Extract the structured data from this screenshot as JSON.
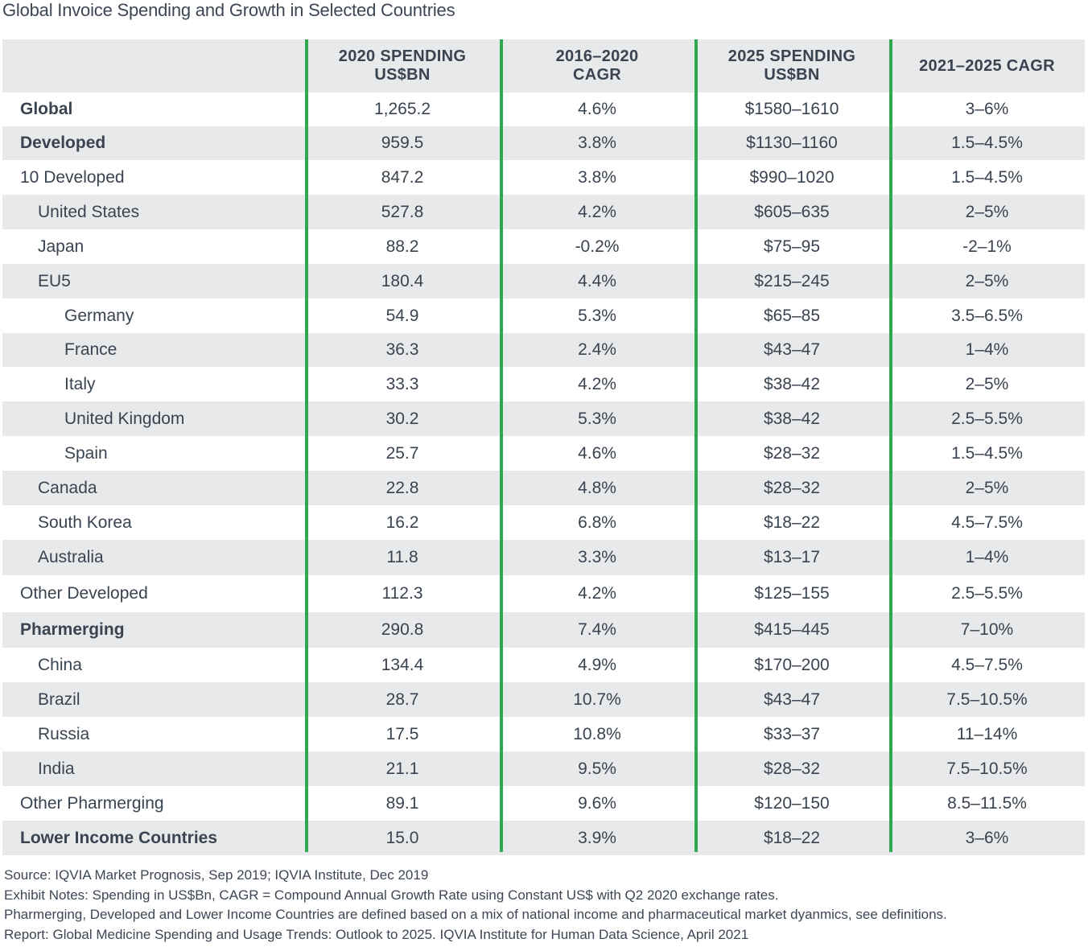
{
  "title": "Global Invoice Spending and Growth in Selected Countries",
  "colors": {
    "accent": "#2fa84f",
    "shade": "#e8e9eb",
    "text": "#3a4350"
  },
  "table": {
    "headers": [
      {
        "line1": "",
        "line2": ""
      },
      {
        "line1": "2020 SPENDING",
        "line2": "US$BN"
      },
      {
        "line1": "2016–2020",
        "line2": "CAGR"
      },
      {
        "line1": "2025 SPENDING",
        "line2": "US$BN"
      },
      {
        "line1": "2021–2025 CAGR",
        "line2": ""
      }
    ],
    "rows": [
      {
        "cells": [
          "Global",
          "1,265.2",
          "4.6%",
          "$1580–1610",
          "3–6%"
        ],
        "level": 0,
        "bold": true
      },
      {
        "cells": [
          "Developed",
          "959.5",
          "3.8%",
          "$1130–1160",
          "1.5–4.5%"
        ],
        "level": 0,
        "bold": true
      },
      {
        "cells": [
          "10 Developed",
          "847.2",
          "3.8%",
          "$990–1020",
          "1.5–4.5%"
        ],
        "level": 0,
        "bold": false
      },
      {
        "cells": [
          "United States",
          "527.8",
          "4.2%",
          "$605–635",
          "2–5%"
        ],
        "level": 1,
        "bold": false
      },
      {
        "cells": [
          "Japan",
          "88.2",
          "-0.2%",
          "$75–95",
          "-2–1%"
        ],
        "level": 1,
        "bold": false
      },
      {
        "cells": [
          "EU5",
          "180.4",
          "4.4%",
          "$215–245",
          "2–5%"
        ],
        "level": 1,
        "bold": false
      },
      {
        "cells": [
          "Germany",
          "54.9",
          "5.3%",
          "$65–85",
          "3.5–6.5%"
        ],
        "level": 2,
        "bold": false
      },
      {
        "cells": [
          "France",
          "36.3",
          "2.4%",
          "$43–47",
          "1–4%"
        ],
        "level": 2,
        "bold": false
      },
      {
        "cells": [
          "Italy",
          "33.3",
          "4.2%",
          "$38–42",
          "2–5%"
        ],
        "level": 2,
        "bold": false
      },
      {
        "cells": [
          "United Kingdom",
          "30.2",
          "5.3%",
          "$38–42",
          "2.5–5.5%"
        ],
        "level": 2,
        "bold": false
      },
      {
        "cells": [
          "Spain",
          "25.7",
          "4.6%",
          "$28–32",
          "1.5–4.5%"
        ],
        "level": 2,
        "bold": false
      },
      {
        "cells": [
          "Canada",
          "22.8",
          "4.8%",
          "$28–32",
          "2–5%"
        ],
        "level": 1,
        "bold": false
      },
      {
        "cells": [
          "South Korea",
          "16.2",
          "6.8%",
          "$18–22",
          "4.5–7.5%"
        ],
        "level": 1,
        "bold": false
      },
      {
        "cells": [
          "Australia",
          "11.8",
          "3.3%",
          "$13–17",
          "1–4%"
        ],
        "level": 1,
        "bold": false
      },
      {
        "cells": [
          "Other Developed",
          "112.3",
          "4.2%",
          "$125–155",
          "2.5–5.5%"
        ],
        "level": 0,
        "bold": false
      },
      {
        "cells": [
          "Pharmerging",
          "290.8",
          "7.4%",
          "$415–445",
          "7–10%"
        ],
        "level": 0,
        "bold": true
      },
      {
        "cells": [
          "China",
          "134.4",
          "4.9%",
          "$170–200",
          "4.5–7.5%"
        ],
        "level": 1,
        "bold": false
      },
      {
        "cells": [
          "Brazil",
          "28.7",
          "10.7%",
          "$43–47",
          "7.5–10.5%"
        ],
        "level": 1,
        "bold": false
      },
      {
        "cells": [
          "Russia",
          "17.5",
          "10.8%",
          "$33–37",
          "11–14%"
        ],
        "level": 1,
        "bold": false
      },
      {
        "cells": [
          "India",
          "21.1",
          "9.5%",
          "$28–32",
          "7.5–10.5%"
        ],
        "level": 1,
        "bold": false
      },
      {
        "cells": [
          "Other Pharmerging",
          "89.1",
          "9.6%",
          "$120–150",
          "8.5–11.5%"
        ],
        "level": 0,
        "bold": false
      },
      {
        "cells": [
          "Lower Income Countries",
          "15.0",
          "3.9%",
          "$18–22",
          "3–6%"
        ],
        "level": 0,
        "bold": true
      }
    ]
  },
  "notes": [
    "Source: IQVIA Market Prognosis, Sep 2019; IQVIA Institute, Dec 2019",
    "Exhibit Notes: Spending in US$Bn, CAGR = Compound Annual Growth Rate using Constant US$ with Q2 2020 exchange rates.",
    "Pharmerging, Developed and Lower Income Countries are defined based on a mix of national income and pharmaceutical market dyanmics, see definitions.",
    "Report: Global Medicine Spending and Usage Trends: Outlook to 2025. IQVIA Institute for Human Data Science, April 2021"
  ]
}
